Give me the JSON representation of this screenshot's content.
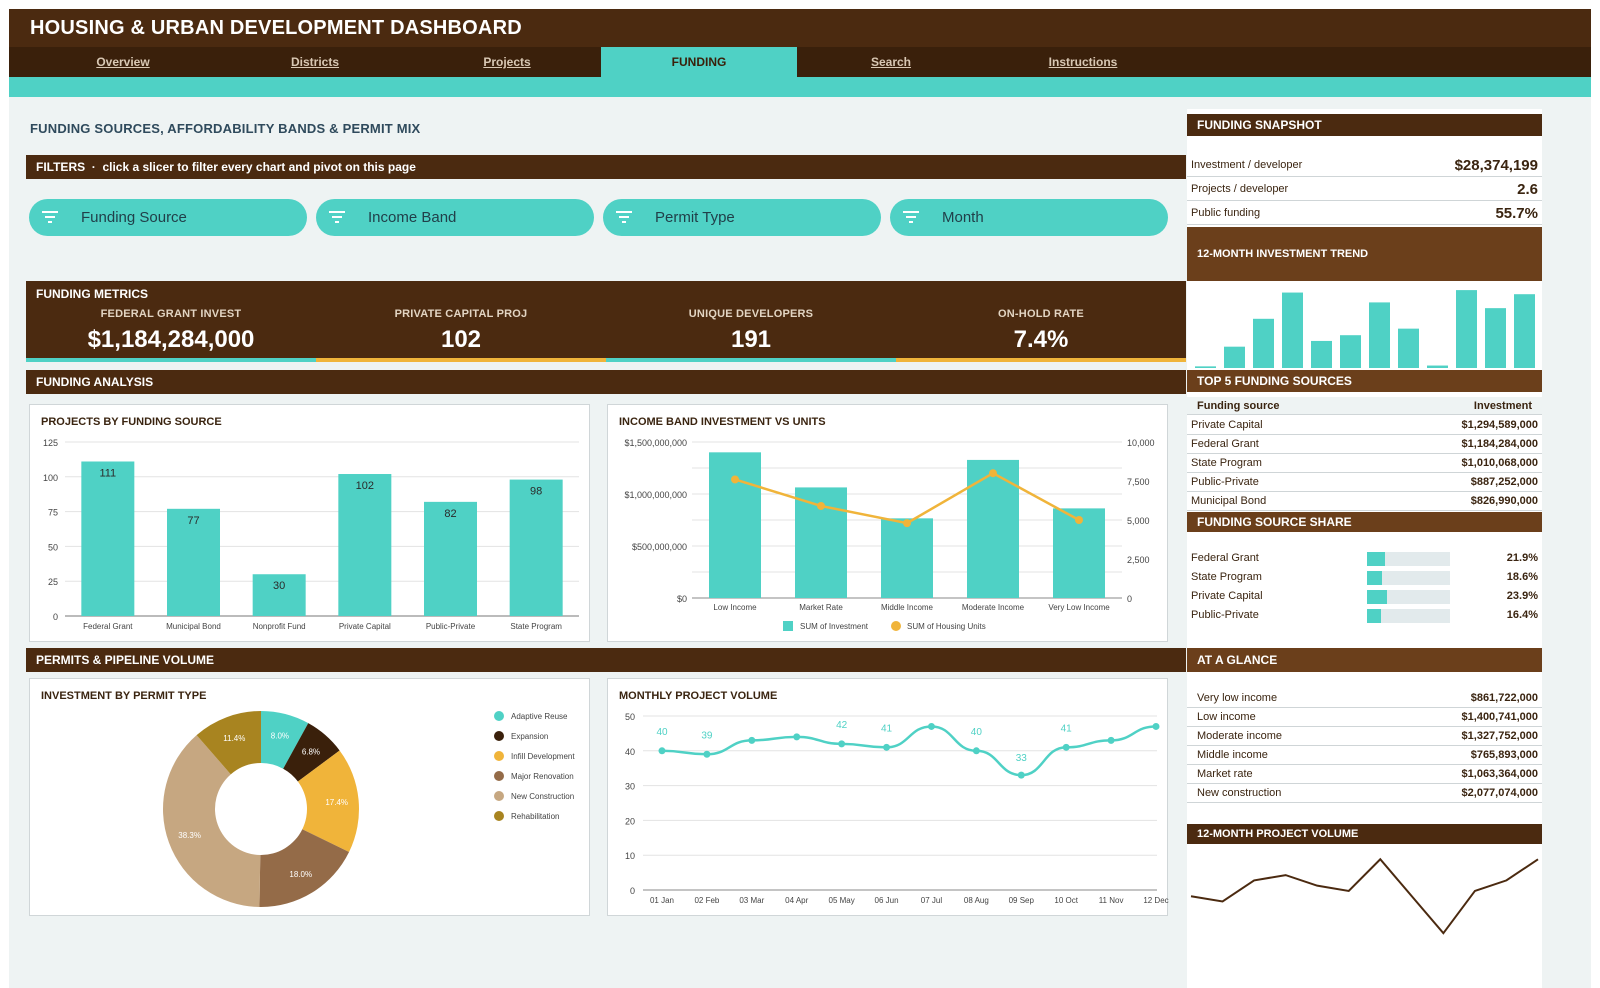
{
  "header": {
    "title": "HOUSING & URBAN DEVELOPMENT DASHBOARD"
  },
  "nav": {
    "tabs": [
      {
        "label": "Overview",
        "active": false
      },
      {
        "label": "Districts",
        "active": false
      },
      {
        "label": "Projects",
        "active": false
      },
      {
        "label": "FUNDING",
        "active": true
      },
      {
        "label": "Search",
        "active": false
      },
      {
        "label": "Instructions",
        "active": false
      }
    ]
  },
  "page": {
    "heading": "FUNDING SOURCES, AFFORDABILITY BANDS & PERMIT MIX"
  },
  "filters": {
    "title": "FILTERS",
    "hint": "click a slicer to filter every chart and pivot on this page",
    "slicers": [
      "Funding Source",
      "Income Band",
      "Permit Type",
      "Month"
    ]
  },
  "metrics": {
    "title": "FUNDING METRICS",
    "kpis": [
      {
        "label": "FEDERAL GRANT INVEST",
        "value": "$1,184,284,000",
        "accent": "#4fd1c5"
      },
      {
        "label": "PRIVATE CAPITAL PROJ",
        "value": "102",
        "accent": "#f0b43a"
      },
      {
        "label": "UNIQUE DEVELOPERS",
        "value": "191",
        "accent": "#4fd1c5"
      },
      {
        "label": "ON-HOLD RATE",
        "value": "7.4%",
        "accent": "#f0b43a"
      }
    ]
  },
  "sections": {
    "analysis": "FUNDING ANALYSIS",
    "permits": "PERMITS & PIPELINE VOLUME"
  },
  "colors": {
    "teal": "#4fd1c5",
    "brown": "#4b2a10",
    "gold": "#f0b43a"
  },
  "chart_data": [
    {
      "id": "projects_by_source",
      "type": "bar",
      "title": "PROJECTS BY FUNDING SOURCE",
      "categories": [
        "Federal Grant",
        "Municipal Bond",
        "Nonprofit Fund",
        "Private Capital",
        "Public-Private",
        "State Program"
      ],
      "values": [
        111,
        77,
        30,
        102,
        82,
        98
      ],
      "ylim": [
        0,
        125
      ],
      "yticks": [
        "0",
        "25",
        "50",
        "75",
        "100",
        "125"
      ],
      "grid": true
    },
    {
      "id": "income_band",
      "type": "bar",
      "title": "INCOME BAND INVESTMENT VS UNITS",
      "categories": [
        "Low Income",
        "Market Rate",
        "Middle Income",
        "Moderate Income",
        "Very Low Income"
      ],
      "series": [
        {
          "name": "SUM of Investment",
          "type": "bar",
          "axis": "left",
          "values": [
            1400741000,
            1063364000,
            765893000,
            1327752000,
            861722000
          ]
        },
        {
          "name": "SUM of Housing Units",
          "type": "line",
          "axis": "right",
          "values": [
            7600,
            5900,
            4800,
            8000,
            5000
          ]
        }
      ],
      "ylim_left": [
        0,
        1500000000
      ],
      "ylim_right": [
        0,
        10000
      ],
      "yticks_left": [
        "$0",
        "$500,000,000",
        "$1,000,000,000",
        "$1,500,000,000"
      ],
      "yticks_right": [
        "0",
        "2,500",
        "5,000",
        "7,500",
        "10,000"
      ],
      "legend": "bottom"
    },
    {
      "id": "permit_type",
      "type": "pie",
      "title": "INVESTMENT BY PERMIT TYPE",
      "labels": [
        "Adaptive Reuse",
        "Expansion",
        "Infill Development",
        "Major Renovation",
        "New Construction",
        "Rehabilitation"
      ],
      "values": [
        8.0,
        6.8,
        17.4,
        18.0,
        38.3,
        11.4
      ],
      "value_labels": [
        "8.0%",
        "6.8%",
        "17.4%",
        "18.0%",
        "38.3%",
        "11.4%"
      ],
      "colors": [
        "#4fd1c5",
        "#3a200b",
        "#f0b43a",
        "#946b48",
        "#c6a781",
        "#a88420"
      ],
      "legend": "right"
    },
    {
      "id": "monthly_volume",
      "type": "line",
      "title": "MONTHLY PROJECT VOLUME",
      "categories": [
        "01 Jan",
        "02 Feb",
        "03 Mar",
        "04 Apr",
        "05 May",
        "06 Jun",
        "07 Jul",
        "08 Aug",
        "09 Sep",
        "10 Oct",
        "11 Nov",
        "12 Dec"
      ],
      "values": [
        40,
        39,
        43,
        44,
        42,
        41,
        47,
        40,
        33,
        41,
        43,
        47
      ],
      "data_labels": [
        "40",
        "39",
        "",
        "",
        "42",
        "41",
        "",
        "40",
        "33",
        "41",
        "",
        ""
      ],
      "ylim": [
        0,
        50
      ],
      "yticks": [
        "0",
        "10",
        "20",
        "30",
        "40",
        "50"
      ]
    },
    {
      "id": "investment_trend",
      "type": "bar",
      "title": "12-MONTH INVESTMENT TREND",
      "values": [
        2,
        26,
        60,
        92,
        33,
        40,
        80,
        48,
        3,
        95,
        73,
        90
      ]
    },
    {
      "id": "project_volume_12m",
      "type": "line",
      "title": "12-MONTH PROJECT VOLUME",
      "values": [
        40,
        39,
        43,
        44,
        42,
        41,
        47,
        40,
        33,
        41,
        43,
        47
      ]
    }
  ],
  "snapshot": {
    "title": "FUNDING SNAPSHOT",
    "rows": [
      {
        "label": "Investment / developer",
        "value": "$28,374,199"
      },
      {
        "label": "Projects / developer",
        "value": "2.6"
      },
      {
        "label": "Public funding",
        "value": "55.7%"
      }
    ]
  },
  "trend_title": "12-MONTH INVESTMENT TREND",
  "top5": {
    "title": "TOP 5 FUNDING SOURCES",
    "col_source": "Funding source",
    "col_invest": "Investment",
    "rows": [
      {
        "source": "Private Capital",
        "investment": "$1,294,589,000"
      },
      {
        "source": "Federal Grant",
        "investment": "$1,184,284,000"
      },
      {
        "source": "State Program",
        "investment": "$1,010,068,000"
      },
      {
        "source": "Public-Private",
        "investment": "$887,252,000"
      },
      {
        "source": "Municipal Bond",
        "investment": "$826,990,000"
      }
    ]
  },
  "share": {
    "title": "FUNDING SOURCE SHARE",
    "rows": [
      {
        "label": "Federal Grant",
        "value": "21.9%",
        "fraction": 0.219
      },
      {
        "label": "State Program",
        "value": "18.6%",
        "fraction": 0.186
      },
      {
        "label": "Private Capital",
        "value": "23.9%",
        "fraction": 0.239
      },
      {
        "label": "Public-Private",
        "value": "16.4%",
        "fraction": 0.164
      }
    ]
  },
  "glance": {
    "title": "AT A GLANCE",
    "rows": [
      {
        "label": "Very low income",
        "value": "$861,722,000"
      },
      {
        "label": "Low income",
        "value": "$1,400,741,000"
      },
      {
        "label": "Moderate income",
        "value": "$1,327,752,000"
      },
      {
        "label": "Middle income",
        "value": "$765,893,000"
      },
      {
        "label": "Market rate",
        "value": "$1,063,364,000"
      },
      {
        "label": "New construction",
        "value": "$2,077,074,000"
      }
    ]
  },
  "volume_title": "12-MONTH PROJECT VOLUME"
}
